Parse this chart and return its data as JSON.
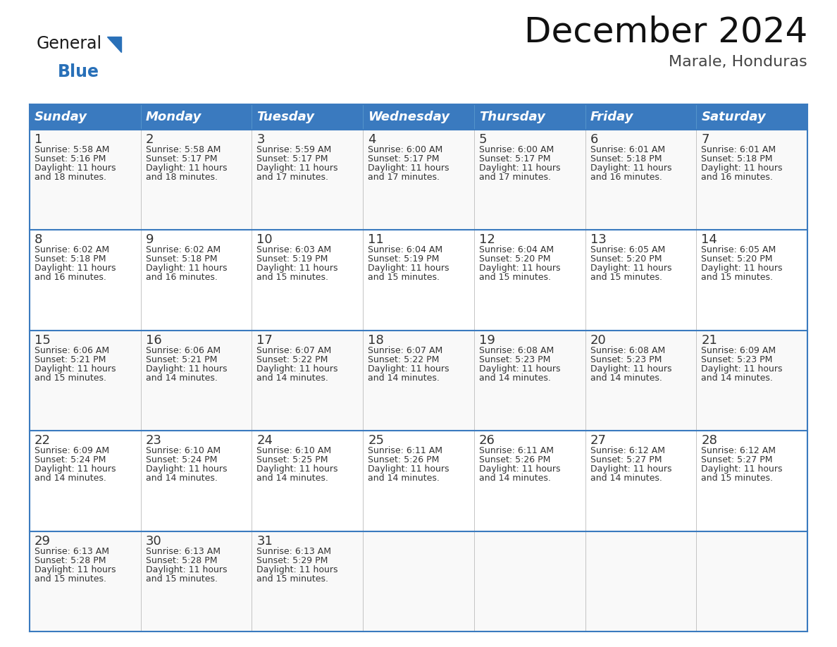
{
  "title": "December 2024",
  "subtitle": "Marale, Honduras",
  "header_color": "#3a7abf",
  "header_text_color": "#ffffff",
  "border_color": "#3a7abf",
  "cell_bg_even": "#f9f9f9",
  "cell_bg_odd": "#ffffff",
  "text_color": "#333333",
  "day_headers": [
    "Sunday",
    "Monday",
    "Tuesday",
    "Wednesday",
    "Thursday",
    "Friday",
    "Saturday"
  ],
  "weeks": [
    [
      {
        "day": 1,
        "sunrise": "5:58 AM",
        "sunset": "5:16 PM",
        "daylight": "11 hours and 18 minutes."
      },
      {
        "day": 2,
        "sunrise": "5:58 AM",
        "sunset": "5:17 PM",
        "daylight": "11 hours and 18 minutes."
      },
      {
        "day": 3,
        "sunrise": "5:59 AM",
        "sunset": "5:17 PM",
        "daylight": "11 hours and 17 minutes."
      },
      {
        "day": 4,
        "sunrise": "6:00 AM",
        "sunset": "5:17 PM",
        "daylight": "11 hours and 17 minutes."
      },
      {
        "day": 5,
        "sunrise": "6:00 AM",
        "sunset": "5:17 PM",
        "daylight": "11 hours and 17 minutes."
      },
      {
        "day": 6,
        "sunrise": "6:01 AM",
        "sunset": "5:18 PM",
        "daylight": "11 hours and 16 minutes."
      },
      {
        "day": 7,
        "sunrise": "6:01 AM",
        "sunset": "5:18 PM",
        "daylight": "11 hours and 16 minutes."
      }
    ],
    [
      {
        "day": 8,
        "sunrise": "6:02 AM",
        "sunset": "5:18 PM",
        "daylight": "11 hours and 16 minutes."
      },
      {
        "day": 9,
        "sunrise": "6:02 AM",
        "sunset": "5:18 PM",
        "daylight": "11 hours and 16 minutes."
      },
      {
        "day": 10,
        "sunrise": "6:03 AM",
        "sunset": "5:19 PM",
        "daylight": "11 hours and 15 minutes."
      },
      {
        "day": 11,
        "sunrise": "6:04 AM",
        "sunset": "5:19 PM",
        "daylight": "11 hours and 15 minutes."
      },
      {
        "day": 12,
        "sunrise": "6:04 AM",
        "sunset": "5:20 PM",
        "daylight": "11 hours and 15 minutes."
      },
      {
        "day": 13,
        "sunrise": "6:05 AM",
        "sunset": "5:20 PM",
        "daylight": "11 hours and 15 minutes."
      },
      {
        "day": 14,
        "sunrise": "6:05 AM",
        "sunset": "5:20 PM",
        "daylight": "11 hours and 15 minutes."
      }
    ],
    [
      {
        "day": 15,
        "sunrise": "6:06 AM",
        "sunset": "5:21 PM",
        "daylight": "11 hours and 15 minutes."
      },
      {
        "day": 16,
        "sunrise": "6:06 AM",
        "sunset": "5:21 PM",
        "daylight": "11 hours and 14 minutes."
      },
      {
        "day": 17,
        "sunrise": "6:07 AM",
        "sunset": "5:22 PM",
        "daylight": "11 hours and 14 minutes."
      },
      {
        "day": 18,
        "sunrise": "6:07 AM",
        "sunset": "5:22 PM",
        "daylight": "11 hours and 14 minutes."
      },
      {
        "day": 19,
        "sunrise": "6:08 AM",
        "sunset": "5:23 PM",
        "daylight": "11 hours and 14 minutes."
      },
      {
        "day": 20,
        "sunrise": "6:08 AM",
        "sunset": "5:23 PM",
        "daylight": "11 hours and 14 minutes."
      },
      {
        "day": 21,
        "sunrise": "6:09 AM",
        "sunset": "5:23 PM",
        "daylight": "11 hours and 14 minutes."
      }
    ],
    [
      {
        "day": 22,
        "sunrise": "6:09 AM",
        "sunset": "5:24 PM",
        "daylight": "11 hours and 14 minutes."
      },
      {
        "day": 23,
        "sunrise": "6:10 AM",
        "sunset": "5:24 PM",
        "daylight": "11 hours and 14 minutes."
      },
      {
        "day": 24,
        "sunrise": "6:10 AM",
        "sunset": "5:25 PM",
        "daylight": "11 hours and 14 minutes."
      },
      {
        "day": 25,
        "sunrise": "6:11 AM",
        "sunset": "5:26 PM",
        "daylight": "11 hours and 14 minutes."
      },
      {
        "day": 26,
        "sunrise": "6:11 AM",
        "sunset": "5:26 PM",
        "daylight": "11 hours and 14 minutes."
      },
      {
        "day": 27,
        "sunrise": "6:12 AM",
        "sunset": "5:27 PM",
        "daylight": "11 hours and 14 minutes."
      },
      {
        "day": 28,
        "sunrise": "6:12 AM",
        "sunset": "5:27 PM",
        "daylight": "11 hours and 15 minutes."
      }
    ],
    [
      {
        "day": 29,
        "sunrise": "6:13 AM",
        "sunset": "5:28 PM",
        "daylight": "11 hours and 15 minutes."
      },
      {
        "day": 30,
        "sunrise": "6:13 AM",
        "sunset": "5:28 PM",
        "daylight": "11 hours and 15 minutes."
      },
      {
        "day": 31,
        "sunrise": "6:13 AM",
        "sunset": "5:29 PM",
        "daylight": "11 hours and 15 minutes."
      },
      null,
      null,
      null,
      null
    ]
  ],
  "logo_color_general": "#1a1a1a",
  "logo_color_blue": "#2970b8",
  "logo_triangle_color": "#2970b8",
  "title_fontsize": 36,
  "subtitle_fontsize": 16,
  "header_fontsize": 13,
  "day_num_fontsize": 13,
  "cell_fontsize": 9
}
